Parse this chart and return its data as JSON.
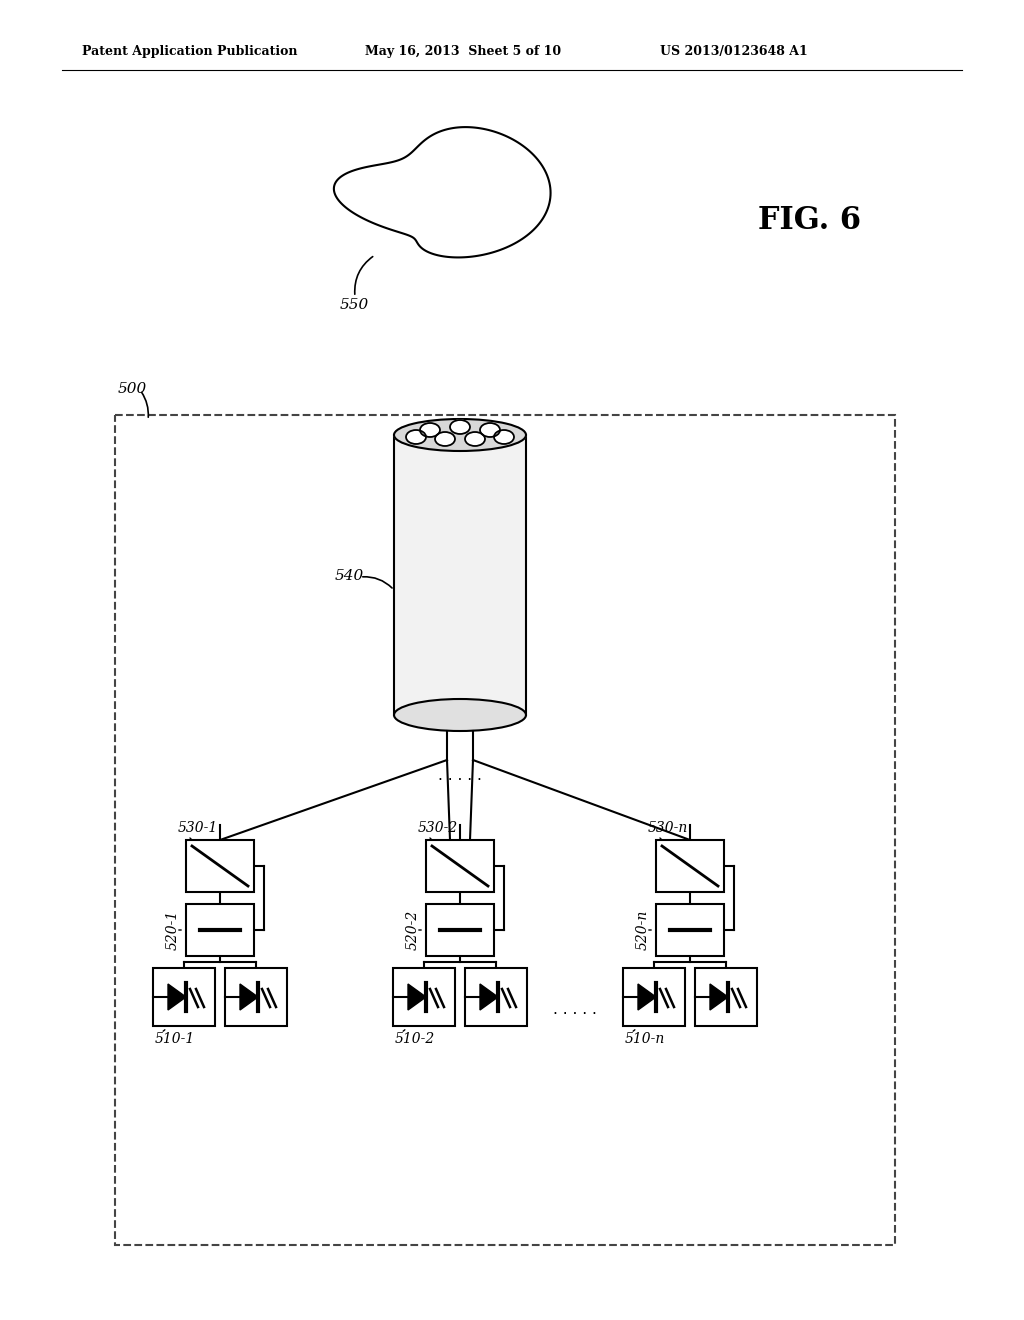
{
  "header_left": "Patent Application Publication",
  "header_center": "May 16, 2013  Sheet 5 of 10",
  "header_right": "US 2013/0123648 A1",
  "fig_label": "FIG. 6",
  "label_500": "500",
  "label_540": "540",
  "label_550": "550",
  "label_530_1": "530-1",
  "label_530_2": "530-2",
  "label_530_n": "530-n",
  "label_520_1": "520-1",
  "label_520_2": "520-2",
  "label_520_n": "520-n",
  "label_510_1": "510-1",
  "label_510_2": "510-2",
  "label_510_n": "510-n",
  "bg_color": "#ffffff",
  "line_color": "#000000"
}
